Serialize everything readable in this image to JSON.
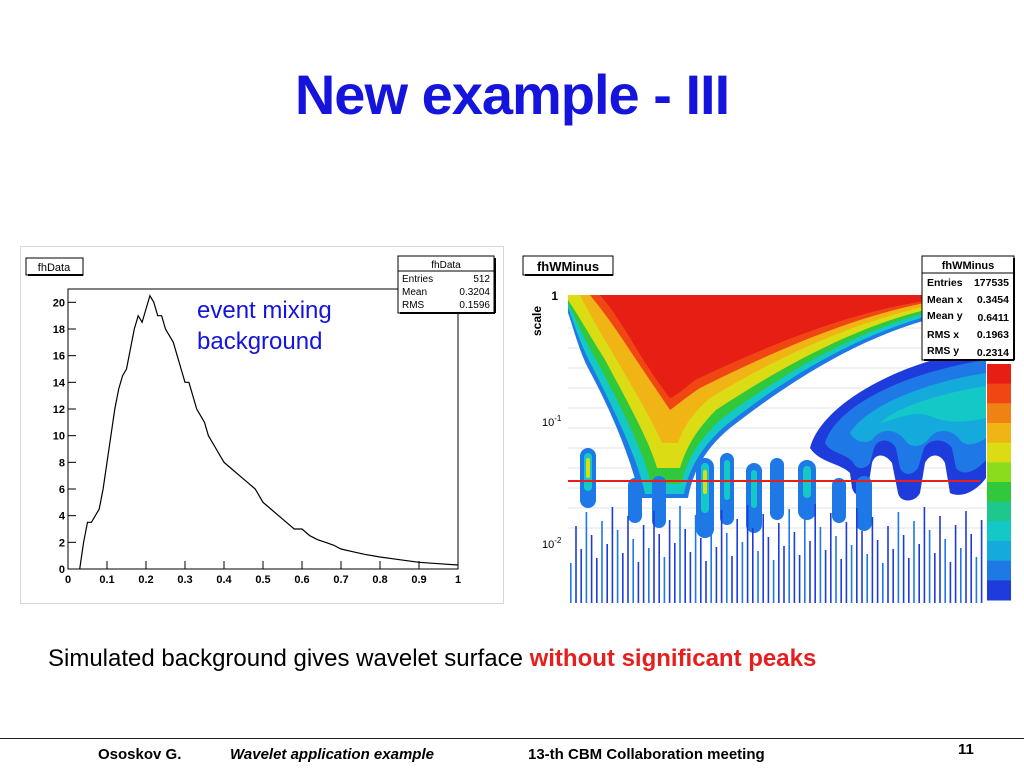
{
  "slide": {
    "title": "New example - III",
    "annotation_line1": "event mixing",
    "annotation_line2": "background",
    "caption_text": "Simulated background gives wavelet surface ",
    "caption_highlight": "without significant peaks",
    "colors": {
      "title": "#1414dc",
      "annotation": "#1414dc",
      "highlight": "#e61e1e"
    }
  },
  "footer": {
    "author": "Ososkov G.",
    "subject": "Wavelet application example",
    "event": "13-th CBM Collaboration meeting",
    "page": "11"
  },
  "chart_data": [
    {
      "type": "line",
      "title": "fhData",
      "xlim": [
        0,
        1
      ],
      "ylim": [
        0,
        21
      ],
      "x_ticks": [
        "0",
        "0.1",
        "0.2",
        "0.3",
        "0.4",
        "0.5",
        "0.6",
        "0.7",
        "0.8",
        "0.9",
        "1"
      ],
      "y_ticks": [
        "0",
        "2",
        "4",
        "6",
        "8",
        "10",
        "12",
        "14",
        "16",
        "18",
        "20"
      ],
      "stats": {
        "title": "fhData",
        "rows": [
          {
            "label": "Entries",
            "value": "512"
          },
          {
            "label": "Mean",
            "value": "0.3204"
          },
          {
            "label": "RMS",
            "value": "0.1596"
          }
        ]
      },
      "x": [
        0.03,
        0.04,
        0.05,
        0.06,
        0.07,
        0.08,
        0.09,
        0.1,
        0.11,
        0.12,
        0.13,
        0.14,
        0.15,
        0.16,
        0.17,
        0.18,
        0.19,
        0.2,
        0.21,
        0.22,
        0.23,
        0.24,
        0.25,
        0.26,
        0.27,
        0.28,
        0.29,
        0.3,
        0.31,
        0.32,
        0.33,
        0.34,
        0.35,
        0.36,
        0.37,
        0.38,
        0.39,
        0.4,
        0.42,
        0.44,
        0.46,
        0.48,
        0.5,
        0.52,
        0.54,
        0.56,
        0.58,
        0.6,
        0.62,
        0.64,
        0.66,
        0.68,
        0.7,
        0.73,
        0.76,
        0.8,
        0.85,
        0.9,
        0.95,
        1.0
      ],
      "values": [
        0,
        2,
        3.5,
        3.5,
        4,
        4.5,
        6,
        8,
        10,
        12,
        13.5,
        14.5,
        15,
        16.5,
        18,
        19,
        18.5,
        19.5,
        20.5,
        20,
        19,
        19,
        18,
        17.5,
        17,
        16,
        15,
        14,
        14,
        13,
        12,
        11.5,
        11,
        10,
        9.5,
        9,
        8.5,
        8,
        7.5,
        7,
        6.5,
        6,
        5,
        4.5,
        4,
        3.5,
        3,
        3,
        2.5,
        2.2,
        2,
        1.8,
        1.5,
        1.3,
        1.1,
        0.9,
        0.7,
        0.5,
        0.4,
        0.3
      ],
      "color": "#000000"
    },
    {
      "type": "heatmap",
      "title": "fhWMinus",
      "ylabel": "scale",
      "y_scale": "log",
      "y_ticks": [
        "1",
        "10^-1",
        "10^-2"
      ],
      "stats": {
        "title": "fhWMinus",
        "rows": [
          {
            "label": "Entries",
            "value": "177535"
          },
          {
            "label": "Mean x",
            "value": "0.3454"
          },
          {
            "label": "Mean y",
            "value": "0.6411"
          },
          {
            "label": "RMS x",
            "value": "0.1963"
          },
          {
            "label": "RMS y",
            "value": "0.2314"
          }
        ]
      },
      "color_scale": [
        "#1e3cdc",
        "#1e78e6",
        "#14aadc",
        "#14c8c8",
        "#1ec88c",
        "#32c83c",
        "#8cdc1e",
        "#dcdc14",
        "#f0b414",
        "#f08214",
        "#f04614",
        "#e61e14"
      ],
      "threshold_line_color": "#e61e1e"
    }
  ]
}
